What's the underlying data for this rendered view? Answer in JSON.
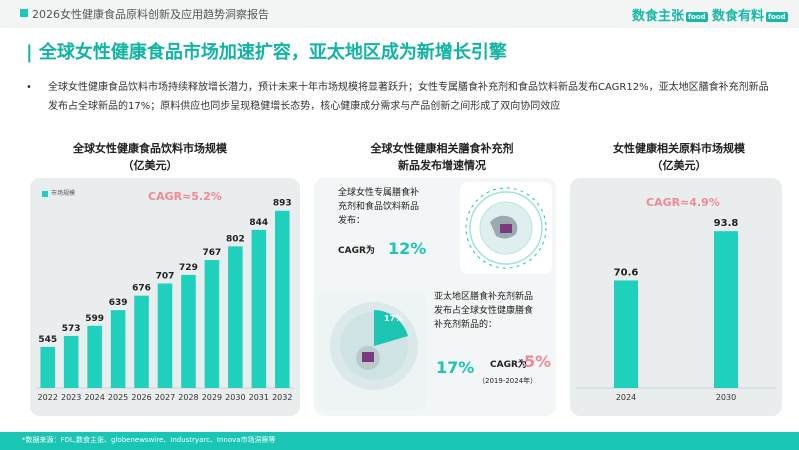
{
  "header": {
    "report_title": "2026女性健康食品原料创新及应用趋势洞察报告",
    "brand1": "数食主张",
    "brand1_tag": "food",
    "brand2": "数食有料",
    "brand2_tag": "food"
  },
  "headline": "| 全球女性健康食品市场加速扩容，亚太地区成为新增长引擎",
  "bullet": {
    "dot": "•",
    "text": "全球女性健康食品饮料市场持续释放增长潜力，预计未来十年市场规模将显著跃升；女性专属膳食补充剂和食品饮料新品发布CAGR12%，亚太地区膳食补充剂新品发布占全球新品的17%；原料供应也同步呈现稳健增长态势，核心健康成分需求与产品创新之间形成了双向协同效应"
  },
  "left_panel": {
    "title_line1": "全球女性健康食品饮料市场规模",
    "title_line2": "（亿美元）",
    "legend": "市场规模",
    "cagr": "CAGR≈5.2%"
  },
  "middle_panel": {
    "title_line1": "全球女性健康相关膳食补充剂",
    "title_line2": "新品发布增速情况",
    "card1_line1": "全球女性专属膳食补",
    "card1_line2": "充剂和食品饮料新品",
    "card1_line3": "发布：",
    "card1_cagr_label": "CAGR为",
    "card1_cagr_value": "12%",
    "card2_line1": "亚太地区膳食补充剂新品",
    "card2_line2": "发布占全球女性健康膳食",
    "card2_line3": "补充剂新品的：",
    "card2_share": "17%",
    "card2_pie_label": "17%",
    "card2_cagr_label": "CAGR为",
    "card2_cagr_value": "5%",
    "card2_period": "（2019-2024年）"
  },
  "right_panel": {
    "title_line1": "女性健康相关原料市场规模",
    "title_line2": "（亿美元）",
    "cagr": "CAGR≈4.9%"
  },
  "footer": "*数据来源：FDL,数食主张、globenewswire、Industryarc、Innova市场洞察等",
  "colors": {
    "accent": "#1cc5b2",
    "cagr": "#ef8a92",
    "bar": "#1fd0bd"
  },
  "chart_data": [
    {
      "type": "bar",
      "title": "全球女性健康食品饮料市场规模（亿美元）",
      "categories": [
        "2022",
        "2023",
        "2024",
        "2025",
        "2026",
        "2027",
        "2028",
        "2029",
        "2030",
        "2031",
        "2032"
      ],
      "series": [
        {
          "name": "市场规模",
          "values": [
            545,
            573,
            599,
            639,
            676,
            707,
            729,
            767,
            802,
            844,
            893
          ]
        }
      ],
      "annotations": [
        "CAGR≈5.2%"
      ]
    },
    {
      "type": "bar",
      "title": "女性健康相关原料市场规模（亿美元）",
      "categories": [
        "2024",
        "2030"
      ],
      "values": [
        70.6,
        93.8
      ],
      "annotations": [
        "CAGR≈4.9%"
      ]
    }
  ]
}
